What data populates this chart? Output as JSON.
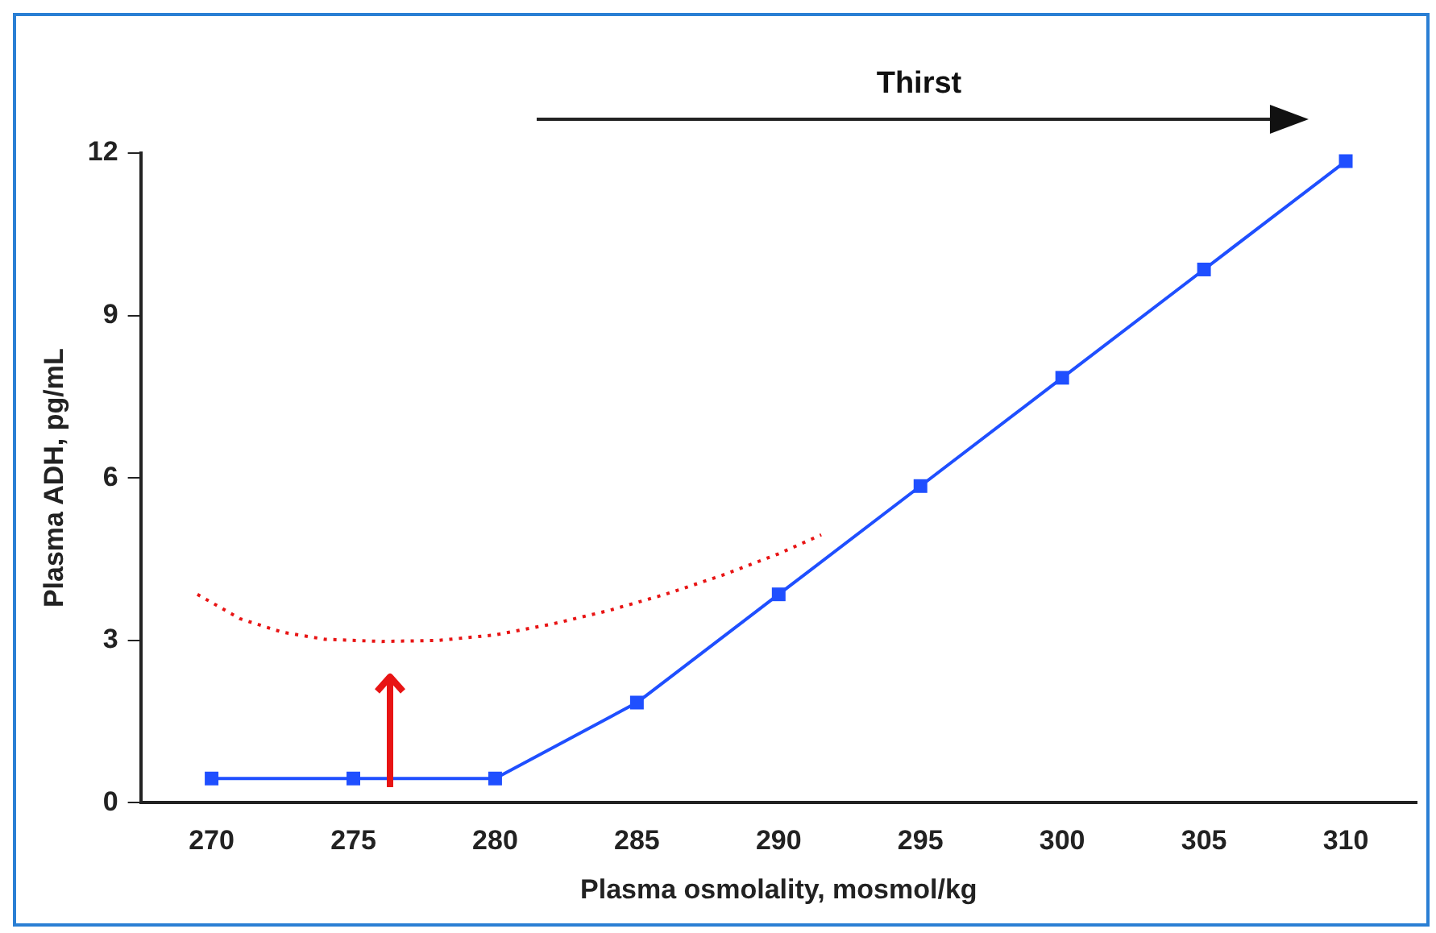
{
  "chart_data": {
    "type": "line",
    "xlabel": "Plasma osmolality, mosmol/kg",
    "ylabel": "Plasma ADH, pg/mL",
    "annotations": [
      "Thirst"
    ],
    "xlim": [
      267.5,
      312.5
    ],
    "xticks": [
      270,
      275,
      280,
      285,
      290,
      295,
      300,
      305,
      310
    ],
    "ylim": [
      0,
      12
    ],
    "yticks": [
      0,
      3,
      6,
      9,
      12
    ],
    "grid": false,
    "legend": false,
    "series": [
      {
        "color": "#1f4fff",
        "marker": "square",
        "line_style": "solid",
        "x": [
          270,
          275,
          280,
          285,
          290,
          295,
          300,
          305,
          310
        ],
        "values": [
          0.45,
          0.45,
          0.45,
          1.85,
          3.85,
          5.85,
          7.85,
          9.85,
          11.85
        ]
      },
      {
        "color": "#e81414",
        "marker": "none",
        "line_style": "dotted",
        "x": [
          269.5,
          271,
          272.5,
          274,
          276,
          278,
          280,
          282,
          284,
          286,
          288,
          290,
          291.5
        ],
        "values": [
          3.85,
          3.4,
          3.15,
          3.02,
          2.98,
          3.0,
          3.1,
          3.3,
          3.55,
          3.85,
          4.2,
          4.6,
          4.95
        ]
      }
    ]
  }
}
